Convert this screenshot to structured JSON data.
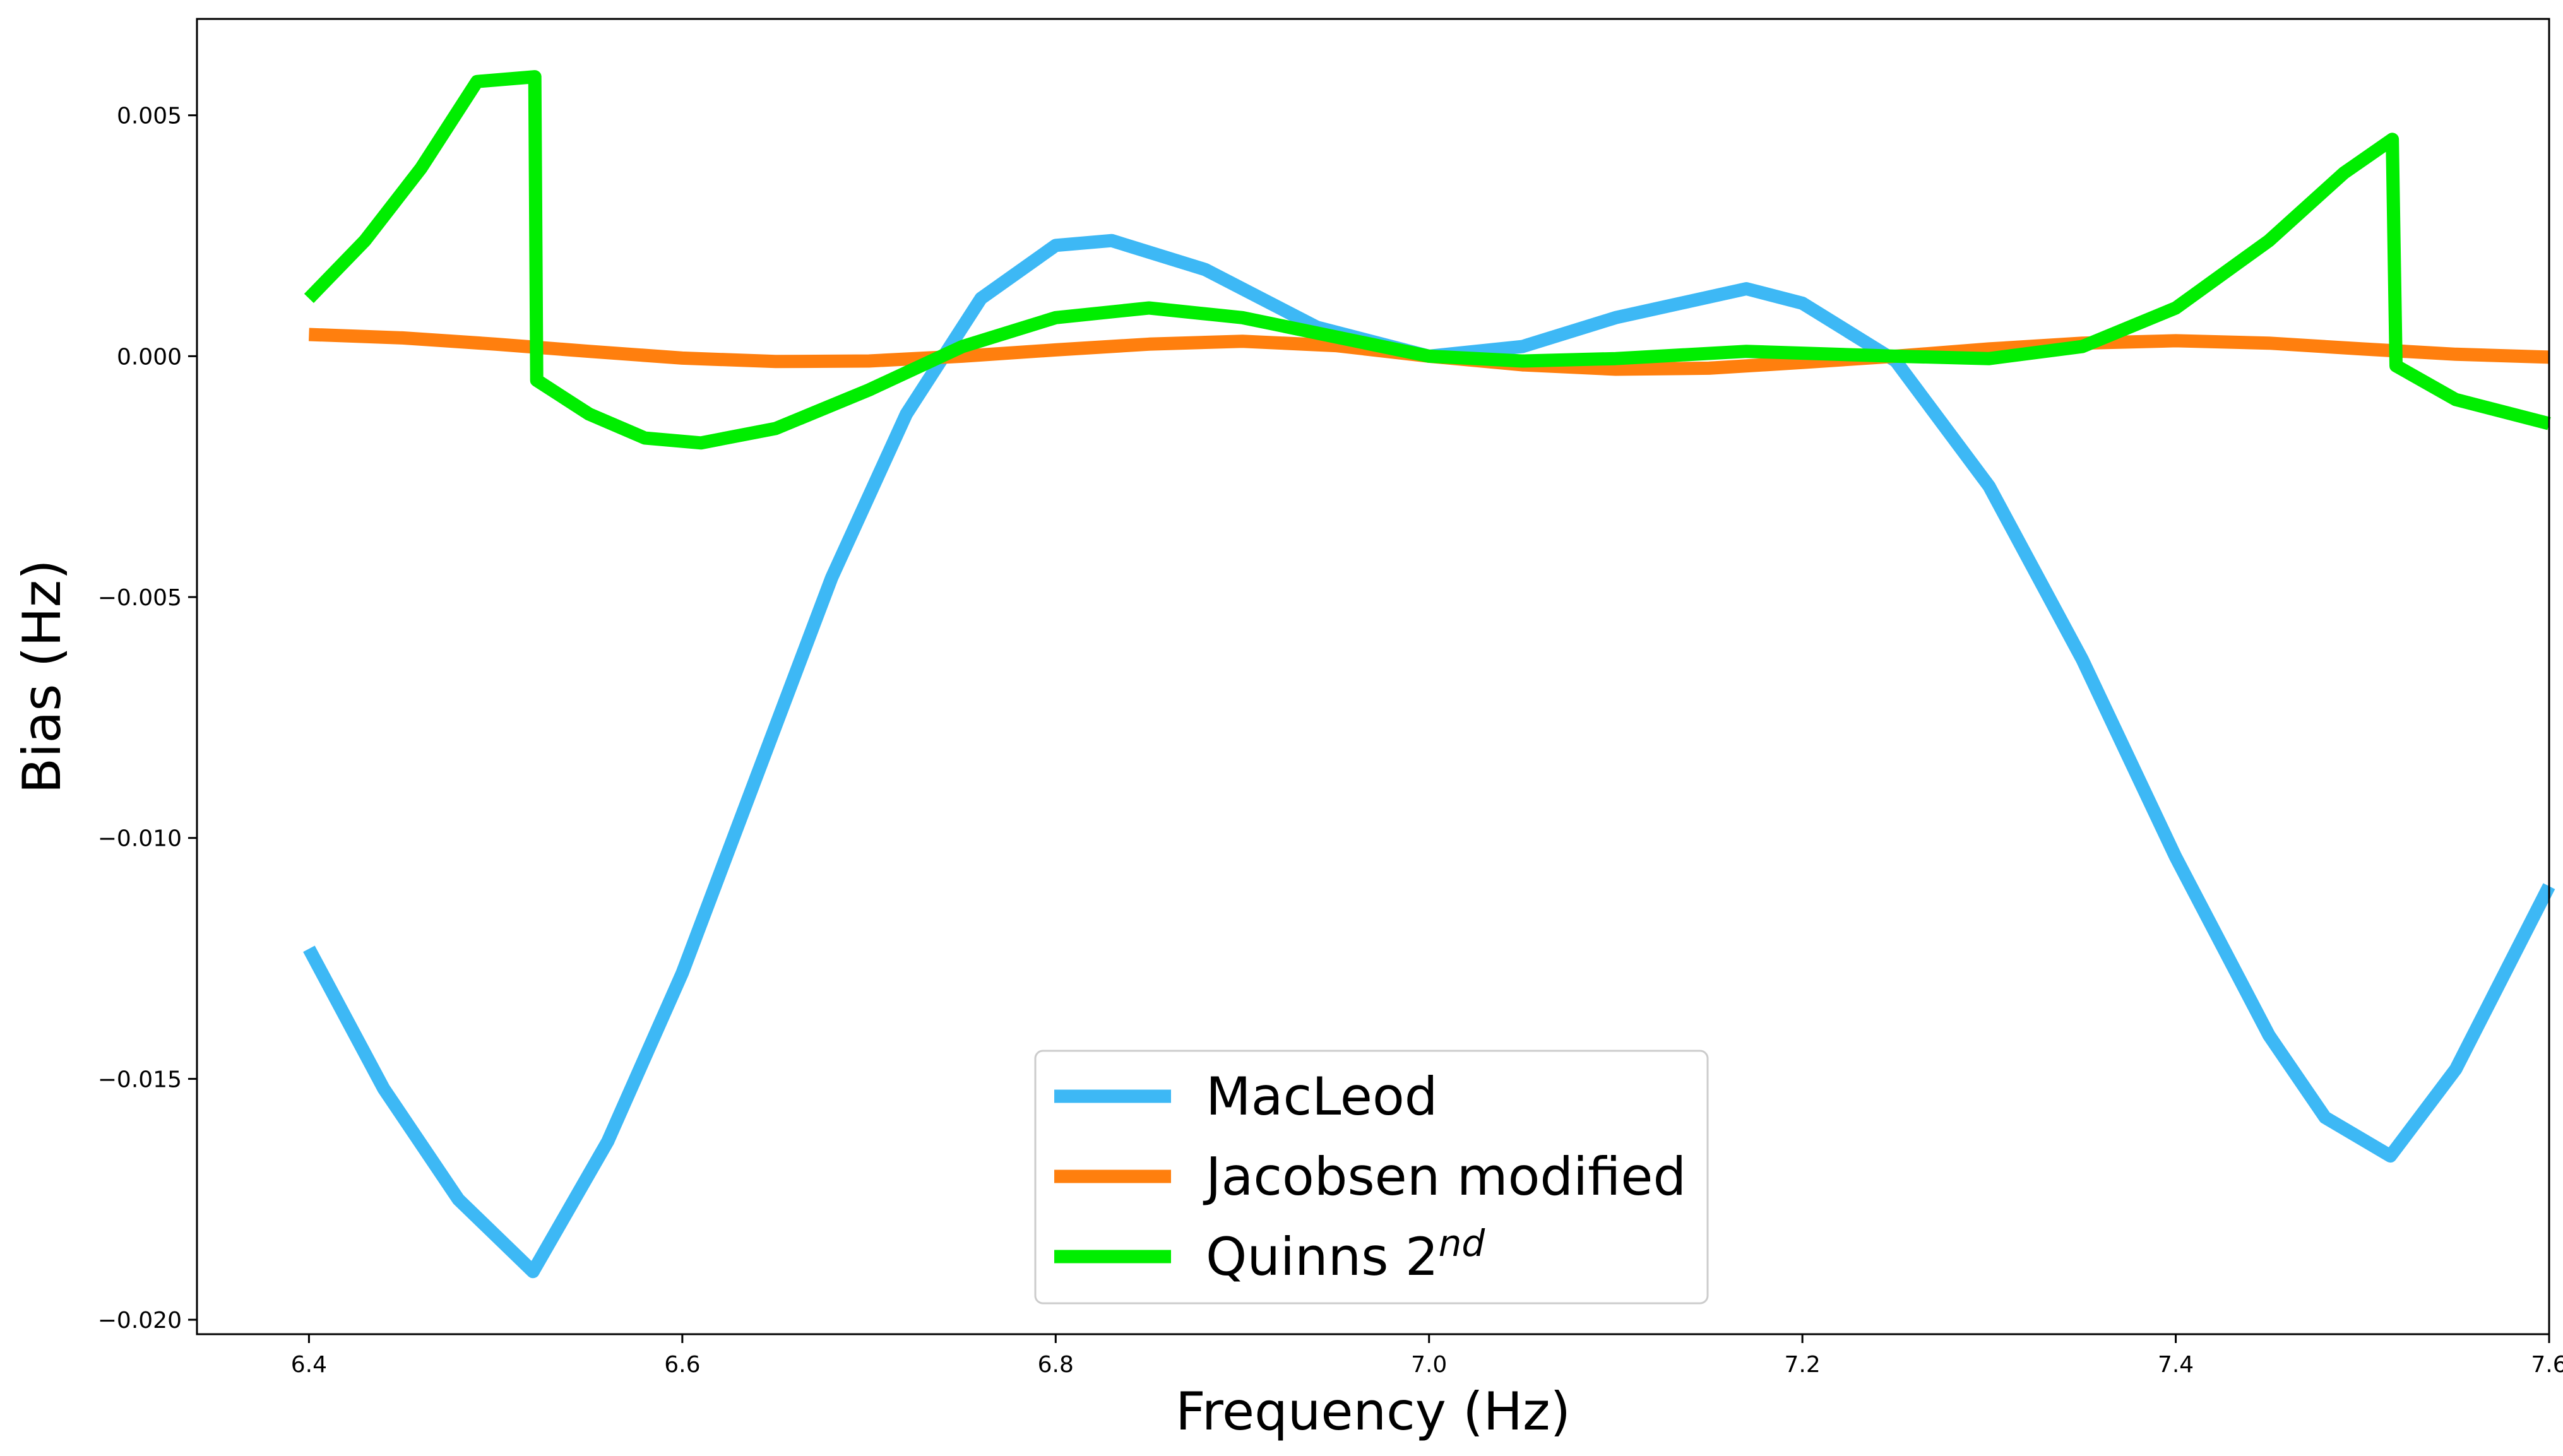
{
  "chart_data": {
    "type": "line",
    "title": "",
    "xlabel": "Frequency (Hz)",
    "ylabel": "Bias (Hz)",
    "xlim": [
      6.34,
      7.6
    ],
    "ylim": [
      -0.0203,
      0.007
    ],
    "x_ticks": [
      6.4,
      6.6,
      6.8,
      7.0,
      7.2,
      7.4,
      7.6
    ],
    "x_tick_labels": [
      "6.4",
      "6.6",
      "6.8",
      "7.0",
      "7.2",
      "7.4",
      "7.6"
    ],
    "y_ticks": [
      0.005,
      0.0,
      -0.005,
      -0.01,
      -0.015,
      -0.02
    ],
    "y_tick_labels": [
      "0.005",
      "0.000",
      "−0.005",
      "−0.010",
      "−0.015",
      "−0.020"
    ],
    "grid": false,
    "legend_position": "bottom-center",
    "series": [
      {
        "name": "MacLeod",
        "color": "#3db8f5",
        "points": [
          [
            6.4,
            -0.0123
          ],
          [
            6.44,
            -0.0152
          ],
          [
            6.48,
            -0.0175
          ],
          [
            6.52,
            -0.019
          ],
          [
            6.56,
            -0.0163
          ],
          [
            6.6,
            -0.0128
          ],
          [
            6.64,
            -0.0087
          ],
          [
            6.68,
            -0.0046
          ],
          [
            6.72,
            -0.0012
          ],
          [
            6.76,
            0.0012
          ],
          [
            6.8,
            0.0023
          ],
          [
            6.83,
            0.0024
          ],
          [
            6.88,
            0.0018
          ],
          [
            6.94,
            0.0006
          ],
          [
            7.0,
            0.0
          ],
          [
            7.05,
            0.0002
          ],
          [
            7.1,
            0.0008
          ],
          [
            7.17,
            0.0014
          ],
          [
            7.2,
            0.0011
          ],
          [
            7.25,
            -0.0001
          ],
          [
            7.3,
            -0.0027
          ],
          [
            7.35,
            -0.0063
          ],
          [
            7.4,
            -0.0104
          ],
          [
            7.45,
            -0.0141
          ],
          [
            7.48,
            -0.0158
          ],
          [
            7.515,
            -0.0166
          ],
          [
            7.55,
            -0.0148
          ],
          [
            7.6,
            -0.011
          ]
        ]
      },
      {
        "name": "Jacobsen modified",
        "color": "#ff7f0e",
        "points": [
          [
            6.4,
            0.00045
          ],
          [
            6.45,
            0.00038
          ],
          [
            6.5,
            0.00025
          ],
          [
            6.55,
            0.0001
          ],
          [
            6.6,
            -4e-05
          ],
          [
            6.65,
            -0.00011
          ],
          [
            6.7,
            -0.0001
          ],
          [
            6.75,
            0.0
          ],
          [
            6.8,
            0.00013
          ],
          [
            6.85,
            0.00025
          ],
          [
            6.9,
            0.00031
          ],
          [
            6.95,
            0.00022
          ],
          [
            7.0,
            0.0
          ],
          [
            7.05,
            -0.00018
          ],
          [
            7.1,
            -0.00027
          ],
          [
            7.15,
            -0.00025
          ],
          [
            7.2,
            -0.00013
          ],
          [
            7.25,
            0.0
          ],
          [
            7.3,
            0.00015
          ],
          [
            7.35,
            0.00027
          ],
          [
            7.4,
            0.00032
          ],
          [
            7.45,
            0.00027
          ],
          [
            7.5,
            0.00015
          ],
          [
            7.55,
            4e-05
          ],
          [
            7.6,
            -2e-05
          ]
        ]
      },
      {
        "name": "Quinns 2nd",
        "color": "#00ee00",
        "points": [
          [
            6.4,
            0.0012
          ],
          [
            6.43,
            0.0024
          ],
          [
            6.46,
            0.0039
          ],
          [
            6.49,
            0.0057
          ],
          [
            6.521,
            0.0058
          ],
          [
            6.522,
            -0.0005
          ],
          [
            6.55,
            -0.0012
          ],
          [
            6.58,
            -0.0017
          ],
          [
            6.61,
            -0.0018
          ],
          [
            6.65,
            -0.0015
          ],
          [
            6.7,
            -0.0007
          ],
          [
            6.75,
            0.0002
          ],
          [
            6.8,
            0.0008
          ],
          [
            6.85,
            0.001
          ],
          [
            6.9,
            0.0008
          ],
          [
            6.95,
            0.0004
          ],
          [
            7.0,
            0.0
          ],
          [
            7.05,
            -0.0001
          ],
          [
            7.1,
            -5e-05
          ],
          [
            7.17,
            0.0001
          ],
          [
            7.25,
            0.0
          ],
          [
            7.3,
            -5e-05
          ],
          [
            7.35,
            0.0002
          ],
          [
            7.4,
            0.001
          ],
          [
            7.45,
            0.0024
          ],
          [
            7.49,
            0.0038
          ],
          [
            7.516,
            0.0045
          ],
          [
            7.518,
            -0.0002
          ],
          [
            7.55,
            -0.0009
          ],
          [
            7.6,
            -0.0014
          ]
        ]
      }
    ],
    "legend_entries": [
      {
        "base": "MacLeod",
        "sup": ""
      },
      {
        "base": "Jacobsen modified",
        "sup": ""
      },
      {
        "base": "Quinns 2",
        "sup": "nd"
      }
    ]
  }
}
